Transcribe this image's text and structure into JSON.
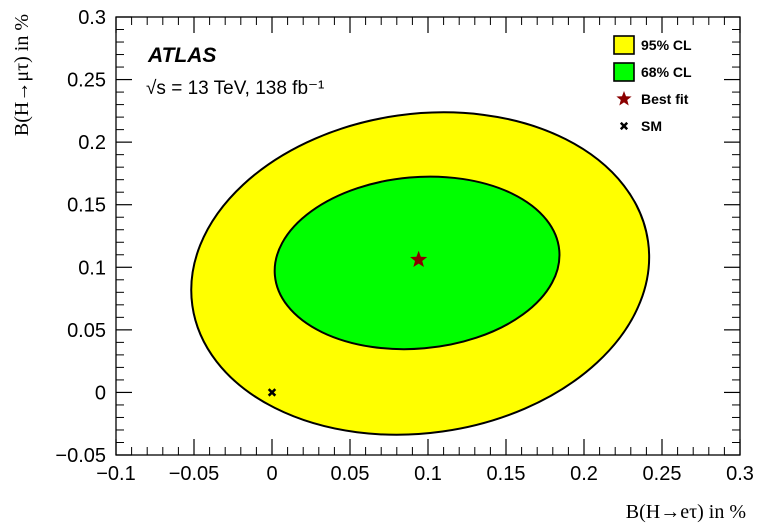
{
  "chart_data": {
    "type": "contour",
    "experiment": "ATLAS",
    "energy_label": "√s = 13 TeV, 138 fb⁻¹",
    "xlabel": "B(H→eτ) in %",
    "ylabel": "B(H→μτ) in %",
    "xlim": [
      -0.1,
      0.3
    ],
    "ylim": [
      -0.05,
      0.3
    ],
    "xticks": [
      -0.1,
      -0.05,
      0,
      0.05,
      0.1,
      0.15,
      0.2,
      0.25,
      0.3
    ],
    "yticks": [
      -0.05,
      0,
      0.05,
      0.1,
      0.15,
      0.2,
      0.25,
      0.3
    ],
    "xtick_labels": [
      "−0.1",
      "−0.05",
      "0",
      "0.05",
      "0.1",
      "0.15",
      "0.2",
      "0.25",
      "0.3"
    ],
    "ytick_labels": [
      "−0.05",
      "0",
      "0.05",
      "0.1",
      "0.15",
      "0.2",
      "0.25",
      "0.3"
    ],
    "regions": [
      {
        "name": "95% CL",
        "color": "#ffff00",
        "center": [
          0.095,
          0.095
        ],
        "semi_x": 0.1475,
        "semi_y": 0.1275,
        "angle_deg": -8
      },
      {
        "name": "68% CL",
        "color": "#00ff00",
        "center": [
          0.093,
          0.1035
        ],
        "semi_x": 0.0915,
        "semi_y": 0.0685,
        "angle_deg": -5
      }
    ],
    "points": [
      {
        "name": "Best fit",
        "x": 0.094,
        "y": 0.106,
        "marker": "star",
        "color": "#8b0000"
      },
      {
        "name": "SM",
        "x": 0.0,
        "y": 0.0,
        "marker": "x",
        "color": "#000000"
      }
    ],
    "legend": {
      "placement": "top-right",
      "entries": [
        {
          "label": "95% CL",
          "kind": "box",
          "color": "#ffff00"
        },
        {
          "label": "68% CL",
          "kind": "box",
          "color": "#00ff00"
        },
        {
          "label": "Best fit",
          "kind": "star",
          "color": "#8b0000"
        },
        {
          "label": "SM",
          "kind": "x",
          "color": "#000000"
        }
      ]
    }
  }
}
